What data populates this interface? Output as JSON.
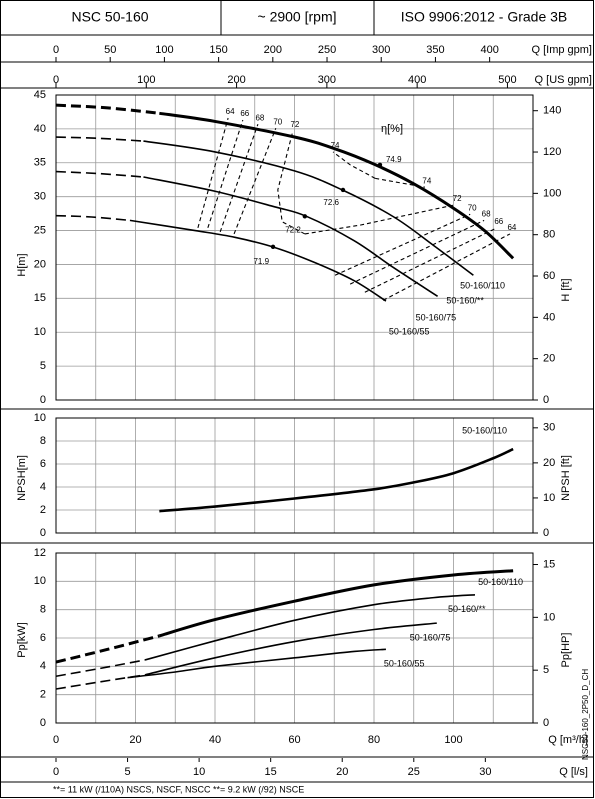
{
  "header": {
    "model": "NSC 50-160",
    "speed": "~ 2900 [rpm]",
    "standard": "ISO 9906:2012 - Grade 3B"
  },
  "footnote": "**= 11 kW (/110A) NSCS, NSCF, NSCC   **= 9.2 kW (/92) NSCE",
  "code": "NSC50-160_2P50_D_CH",
  "flow_axes": [
    {
      "label": "Q [Imp gpm]",
      "lim": [
        0,
        440
      ],
      "ticks": [
        0,
        50,
        100,
        150,
        200,
        250,
        300,
        350,
        400
      ]
    },
    {
      "label": "Q [US gpm]",
      "lim": [
        0,
        528.3
      ],
      "ticks": [
        0,
        100,
        200,
        300,
        400,
        500
      ]
    },
    {
      "label": "Q [l/s]",
      "lim": [
        0,
        33.33
      ],
      "ticks": [
        0,
        5,
        10,
        15,
        20,
        25,
        30
      ]
    }
  ],
  "chart_data": [
    {
      "type": "line",
      "y_label": "H[m]",
      "y2_label": "H [ft]",
      "grid": true,
      "xlim": [
        0,
        120
      ],
      "xticks": [
        0,
        20,
        40,
        60,
        80,
        100
      ],
      "x_minor_ticks": [
        10,
        30,
        50,
        70,
        90,
        110
      ],
      "ylim": [
        0,
        45
      ],
      "yticks": [
        0,
        5,
        10,
        15,
        20,
        25,
        30,
        35,
        40,
        45
      ],
      "y2lim": [
        0,
        147.6
      ],
      "y2ticks": [
        0,
        20,
        40,
        60,
        80,
        100,
        120,
        140
      ],
      "series": [
        {
          "name": "50-160/110",
          "color": "#000000",
          "line_width": 3,
          "dashed_below": 26,
          "x": [
            0,
            13,
            26,
            40,
            60,
            70,
            80,
            90,
            100,
            108,
            115
          ],
          "values": [
            43.5,
            43.1,
            42.3,
            41.1,
            38.8,
            37.1,
            34.8,
            31.9,
            28.3,
            24.9,
            20.9
          ]
        },
        {
          "name": "50-160/**",
          "color": "#000000",
          "line_width": 1.6,
          "dashed_below": 22,
          "x": [
            0,
            11,
            22,
            40,
            60,
            72,
            85,
            95,
            105
          ],
          "values": [
            38.8,
            38.6,
            38.2,
            36.6,
            33.8,
            31,
            27,
            22.8,
            18.4
          ]
        },
        {
          "name": "50-160/75",
          "color": "#000000",
          "line_width": 1.6,
          "dashed_below": 22,
          "x": [
            0,
            11,
            22,
            40,
            55,
            63,
            75,
            85,
            96
          ],
          "values": [
            33.7,
            33.4,
            32.9,
            30.8,
            28.5,
            27.1,
            23.5,
            19.5,
            15.3
          ]
        },
        {
          "name": "50-160/55",
          "color": "#000000",
          "line_width": 1.6,
          "dashed_below": 18.6,
          "x": [
            0,
            9,
            18.6,
            35,
            45,
            55,
            65,
            75,
            83
          ],
          "values": [
            27.2,
            27,
            26.5,
            25,
            24,
            22.5,
            20.3,
            17.6,
            14.6
          ]
        }
      ],
      "efficiency": {
        "label": "η[%]",
        "contours": [
          {
            "label": "64",
            "x": [
              35.7,
              43.3,
              null,
              82.3,
              114.2
            ],
            "values": [
              25.4,
              41.6,
              null,
              14.7,
              24.5
            ]
          },
          {
            "label": "66",
            "x": [
              38.2,
              47,
              null,
              77.7,
              110.9
            ],
            "values": [
              25.4,
              41.3,
              null,
              15.9,
              25.4
            ]
          },
          {
            "label": "68",
            "x": [
              41.3,
              50.8,
              null,
              74,
              107.7
            ],
            "values": [
              24.8,
              40.7,
              null,
              17.1,
              26.5
            ]
          },
          {
            "label": "70",
            "x": [
              44.8,
              55.3,
              null,
              70.2,
              104.2
            ],
            "values": [
              24.5,
              40.1,
              null,
              18.4,
              27.4
            ]
          },
          {
            "label": "72",
            "x": [
              62.6,
              56.9,
              55.8,
              59.6,
              null,
              62.6,
              76.5,
              100.4
            ],
            "values": [
              24.5,
              26.3,
              31,
              39.7,
              null,
              24.5,
              25.8,
              28.8
            ]
          },
          {
            "label": "74",
            "x": [
              80.3,
              74,
              69.7,
              null,
              80.3,
              92.8
            ],
            "values": [
              32.7,
              34.7,
              36.6,
              null,
              32.7,
              31.4
            ]
          }
        ],
        "points": [
          {
            "label": "74.9",
            "x": 81.5,
            "value": 34.7
          },
          {
            "label": "72.6",
            "x": 72.2,
            "value": 31
          },
          {
            "label": "72.2",
            "x": 62.6,
            "value": 27.1
          },
          {
            "label": "71.9",
            "x": 54.6,
            "value": 22.6
          }
        ]
      }
    },
    {
      "type": "line",
      "y_label": "NPSH[m]",
      "y2_label": "NPSH [ft]",
      "grid": true,
      "xlim": [
        0,
        120
      ],
      "xticks": [
        0,
        20,
        40,
        60,
        80,
        100
      ],
      "x_minor_ticks": [
        10,
        30,
        50,
        70,
        90,
        110
      ],
      "ylim": [
        0,
        10
      ],
      "yticks": [
        0,
        2,
        4,
        6,
        8,
        10
      ],
      "y2lim": [
        0,
        32.8
      ],
      "y2ticks": [
        0,
        10,
        20,
        30
      ],
      "series": [
        {
          "name": "50-160/110",
          "color": "#000000",
          "line_width": 2.6,
          "x": [
            26,
            40,
            60,
            80,
            90,
            100,
            110,
            115
          ],
          "values": [
            1.9,
            2.3,
            3,
            3.8,
            4.4,
            5.2,
            6.5,
            7.3
          ]
        }
      ]
    },
    {
      "type": "line",
      "y_label": "Pp[kW]",
      "y2_label": "Pp[HP]",
      "x_label": "Q [m³/h]",
      "grid": true,
      "xlim": [
        0,
        120
      ],
      "xticks": [
        0,
        20,
        40,
        60,
        80,
        100
      ],
      "x_minor_ticks": [
        10,
        30,
        50,
        70,
        90,
        110
      ],
      "ylim": [
        0,
        12
      ],
      "yticks": [
        0,
        2,
        4,
        6,
        8,
        10,
        12
      ],
      "y2lim": [
        0,
        16.09
      ],
      "y2ticks": [
        0,
        5,
        10,
        15
      ],
      "series": [
        {
          "name": "50-160/110",
          "color": "#000000",
          "line_width": 3,
          "dashed_below": 26,
          "x": [
            0,
            13,
            26,
            40,
            60,
            80,
            100,
            115
          ],
          "values": [
            4.3,
            5.2,
            6.15,
            7.3,
            8.6,
            9.75,
            10.45,
            10.75
          ]
        },
        {
          "name": "50-160/**",
          "color": "#000000",
          "line_width": 1.6,
          "dashed_below": 22.4,
          "x": [
            0,
            11,
            22.4,
            40,
            60,
            80,
            95,
            105.4
          ],
          "values": [
            3.3,
            3.85,
            4.45,
            5.8,
            7.25,
            8.35,
            8.85,
            9.05
          ]
        },
        {
          "name": "50-160/75",
          "color": "#000000",
          "line_width": 1.6,
          "dashed_below": 22.4,
          "x": [
            0,
            11,
            22.4,
            40,
            60,
            80,
            95.8
          ],
          "values": [
            2.4,
            2.9,
            3.4,
            4.6,
            5.75,
            6.6,
            7.05
          ]
        },
        {
          "name": "50-160/55",
          "color": "#000000",
          "line_width": 1.6,
          "x": [
            18,
            30,
            40,
            60,
            75,
            83
          ],
          "values": [
            3.2,
            3.6,
            4,
            4.6,
            5.05,
            5.2
          ]
        }
      ]
    }
  ]
}
